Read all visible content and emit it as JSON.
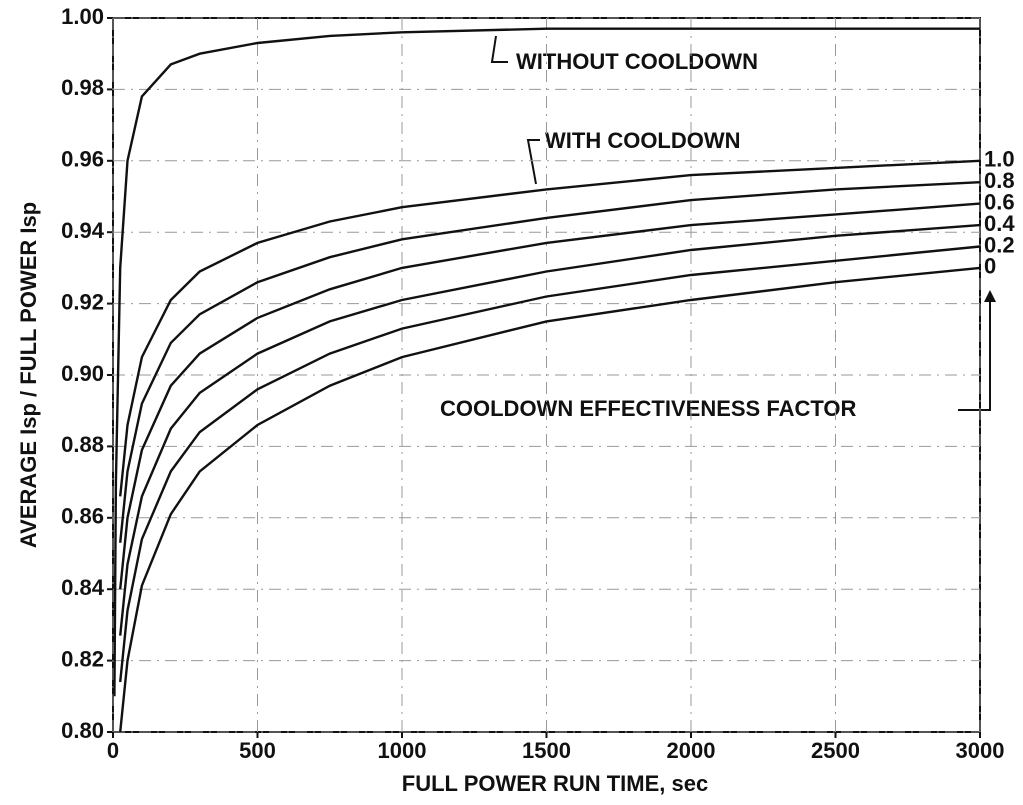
{
  "chart_data": {
    "type": "line",
    "x_label": "FULL POWER RUN TIME, sec",
    "y_label": "AVERAGE Isp / FULL POWER Isp",
    "annotations": [
      "WITH COOLDOWN",
      "COOLDOWN EFFECTIVENESS FACTOR"
    ],
    "x": [
      5,
      10,
      25,
      50,
      100,
      200,
      300,
      500,
      750,
      1000,
      1500,
      2000,
      2500,
      3000
    ],
    "series": [
      {
        "name": "WITHOUT COOLDOWN",
        "color": "#111111",
        "values": [
          0.81,
          0.87,
          0.93,
          0.96,
          0.978,
          0.987,
          0.99,
          0.993,
          0.995,
          0.996,
          0.997,
          0.997,
          0.997,
          0.997
        ]
      },
      {
        "name": "1.0",
        "color": "#111111",
        "values": [
          null,
          null,
          0.866,
          0.886,
          0.905,
          0.921,
          0.929,
          0.937,
          0.943,
          0.947,
          0.952,
          0.956,
          0.958,
          0.96
        ]
      },
      {
        "name": "0.8",
        "color": "#111111",
        "values": [
          null,
          null,
          0.853,
          0.873,
          0.892,
          0.909,
          0.917,
          0.926,
          0.933,
          0.938,
          0.944,
          0.949,
          0.952,
          0.954
        ]
      },
      {
        "name": "0.6",
        "color": "#111111",
        "values": [
          null,
          null,
          0.84,
          0.86,
          0.879,
          0.897,
          0.906,
          0.916,
          0.924,
          0.93,
          0.937,
          0.942,
          0.945,
          0.948
        ]
      },
      {
        "name": "0.4",
        "color": "#111111",
        "values": [
          null,
          null,
          0.827,
          0.847,
          0.866,
          0.885,
          0.895,
          0.906,
          0.915,
          0.921,
          0.929,
          0.935,
          0.939,
          0.942
        ]
      },
      {
        "name": "0.2",
        "color": "#111111",
        "values": [
          null,
          null,
          0.814,
          0.834,
          0.854,
          0.873,
          0.884,
          0.896,
          0.906,
          0.913,
          0.922,
          0.928,
          0.932,
          0.936
        ]
      },
      {
        "name": "0",
        "color": "#111111",
        "values": [
          null,
          null,
          0.8,
          0.82,
          0.841,
          0.861,
          0.873,
          0.886,
          0.897,
          0.905,
          0.915,
          0.921,
          0.926,
          0.93
        ]
      }
    ],
    "xlim": [
      0,
      3000
    ],
    "ylim": [
      0.8,
      1.0
    ],
    "xticks": [
      0,
      500,
      1000,
      1500,
      2000,
      2500,
      3000
    ],
    "yticks": [
      {
        "value": 0.8,
        "label": "0.80"
      },
      {
        "value": 0.82,
        "label": "0.82"
      },
      {
        "value": 0.84,
        "label": "0.84"
      },
      {
        "value": 0.86,
        "label": "0.86"
      },
      {
        "value": 0.88,
        "label": "0.88"
      },
      {
        "value": 0.9,
        "label": "0.90"
      },
      {
        "value": 0.92,
        "label": "0.92"
      },
      {
        "value": 0.94,
        "label": "0.94"
      },
      {
        "value": 0.96,
        "label": "0.96"
      },
      {
        "value": 0.98,
        "label": "0.98"
      },
      {
        "value": 1.0,
        "label": "1.00"
      }
    ],
    "grid": true
  }
}
